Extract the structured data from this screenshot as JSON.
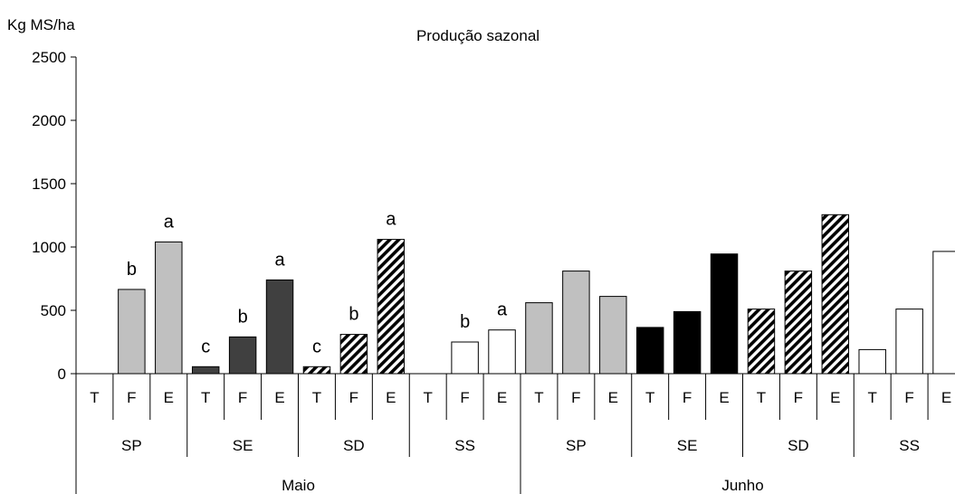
{
  "chart_data": {
    "type": "bar",
    "title": "Produção sazonal",
    "ylabel": "Kg MS/ha",
    "xlabel": "",
    "ylim": [
      0,
      2500
    ],
    "y_ticks": [
      0,
      500,
      1000,
      1500,
      2000,
      2500
    ],
    "grid": false,
    "colors": {
      "SP": "#c0c0c0",
      "SE_maio": "#404040",
      "SE_junho": "#000000",
      "SD": "hatch",
      "SS": "#ffffff"
    },
    "months": [
      {
        "name": "Maio",
        "groups": [
          {
            "name": "SP",
            "series_key": "SP",
            "bars": [
              {
                "cat": "T",
                "value": 0,
                "label": ""
              },
              {
                "cat": "F",
                "value": 665,
                "label": "b"
              },
              {
                "cat": "E",
                "value": 1040,
                "label": "a"
              }
            ]
          },
          {
            "name": "SE",
            "series_key": "SE_maio",
            "bars": [
              {
                "cat": "T",
                "value": 55,
                "label": "c"
              },
              {
                "cat": "F",
                "value": 290,
                "label": "b"
              },
              {
                "cat": "E",
                "value": 740,
                "label": "a"
              }
            ]
          },
          {
            "name": "SD",
            "series_key": "SD",
            "bars": [
              {
                "cat": "T",
                "value": 55,
                "label": "c"
              },
              {
                "cat": "F",
                "value": 310,
                "label": "b"
              },
              {
                "cat": "E",
                "value": 1060,
                "label": "a"
              }
            ]
          },
          {
            "name": "SS",
            "series_key": "SS",
            "bars": [
              {
                "cat": "T",
                "value": 0,
                "label": ""
              },
              {
                "cat": "F",
                "value": 250,
                "label": "b"
              },
              {
                "cat": "E",
                "value": 345,
                "label": "a"
              }
            ]
          }
        ]
      },
      {
        "name": "Junho",
        "groups": [
          {
            "name": "SP",
            "series_key": "SP",
            "bars": [
              {
                "cat": "T",
                "value": 560,
                "label": ""
              },
              {
                "cat": "F",
                "value": 810,
                "label": ""
              },
              {
                "cat": "E",
                "value": 610,
                "label": ""
              }
            ]
          },
          {
            "name": "SE",
            "series_key": "SE_junho",
            "bars": [
              {
                "cat": "T",
                "value": 365,
                "label": ""
              },
              {
                "cat": "F",
                "value": 490,
                "label": ""
              },
              {
                "cat": "E",
                "value": 945,
                "label": ""
              }
            ]
          },
          {
            "name": "SD",
            "series_key": "SD",
            "bars": [
              {
                "cat": "T",
                "value": 510,
                "label": ""
              },
              {
                "cat": "F",
                "value": 810,
                "label": ""
              },
              {
                "cat": "E",
                "value": 1255,
                "label": ""
              }
            ]
          },
          {
            "name": "SS",
            "series_key": "SS",
            "bars": [
              {
                "cat": "T",
                "value": 190,
                "label": ""
              },
              {
                "cat": "F",
                "value": 510,
                "label": ""
              },
              {
                "cat": "E",
                "value": 965,
                "label": ""
              }
            ]
          }
        ]
      }
    ]
  }
}
